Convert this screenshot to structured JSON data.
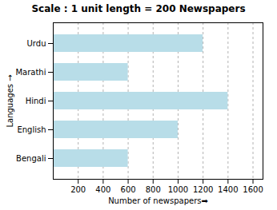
{
  "chart_data": {
    "type": "bar",
    "orientation": "horizontal",
    "title": "Scale : 1 unit length = 200 Newspapers",
    "xlabel": "Number of newspapers➡",
    "ylabel": "Languages →",
    "categories": [
      "Urdu",
      "Marathi",
      "Hindi",
      "English",
      "Bengali"
    ],
    "values": [
      1200,
      600,
      1400,
      1000,
      600
    ],
    "color": "#b8dde8",
    "xlim": [
      0,
      1680
    ],
    "xticks": [
      200,
      400,
      600,
      800,
      1000,
      1200,
      1400,
      1600
    ],
    "grid": true
  }
}
